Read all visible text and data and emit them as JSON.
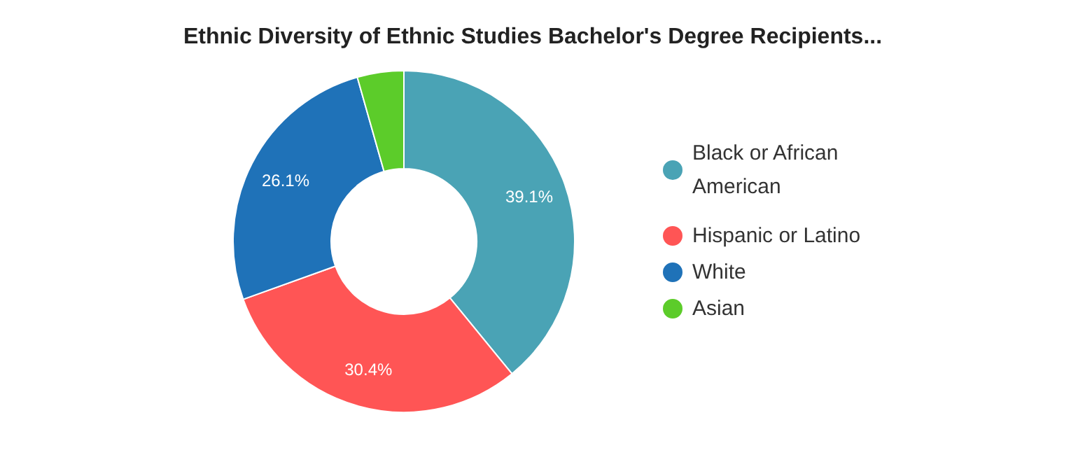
{
  "chart_data": {
    "type": "donut",
    "title": "Ethnic Diversity of Ethnic Studies Bachelor's Degree Recipients...",
    "categories": [
      "Black or African American",
      "Hispanic or Latino",
      "White",
      "Asian"
    ],
    "values": [
      39.1,
      30.4,
      26.1,
      4.4
    ],
    "value_labels": [
      "39.1%",
      "30.4%",
      "26.1%",
      null
    ],
    "colors": [
      "#4aa3b5",
      "#ff5555",
      "#1f72b8",
      "#5ccc2a"
    ],
    "legend": "right"
  }
}
